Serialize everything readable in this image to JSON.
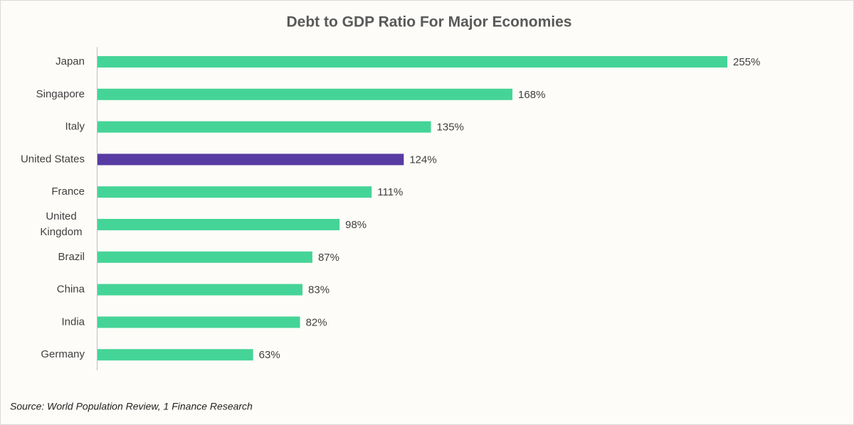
{
  "chart_data": {
    "type": "bar",
    "orientation": "horizontal",
    "title": "Debt to GDP Ratio For Major Economies",
    "categories": [
      "Japan",
      "Singapore",
      "Italy",
      "United States",
      "France",
      "United Kingdom",
      "Brazil",
      "China",
      "India",
      "Germany"
    ],
    "values": [
      255,
      168,
      135,
      124,
      111,
      98,
      87,
      83,
      82,
      63
    ],
    "value_labels": [
      "255%",
      "168%",
      "135%",
      "124%",
      "111%",
      "98%",
      "87%",
      "83%",
      "82%",
      "63%"
    ],
    "colors": [
      "#45d497",
      "#45d497",
      "#45d497",
      "#573ba3",
      "#45d497",
      "#45d497",
      "#45d497",
      "#45d497",
      "#45d497",
      "#45d497"
    ],
    "source": "Source: World Population Review, 1 Finance Research"
  }
}
